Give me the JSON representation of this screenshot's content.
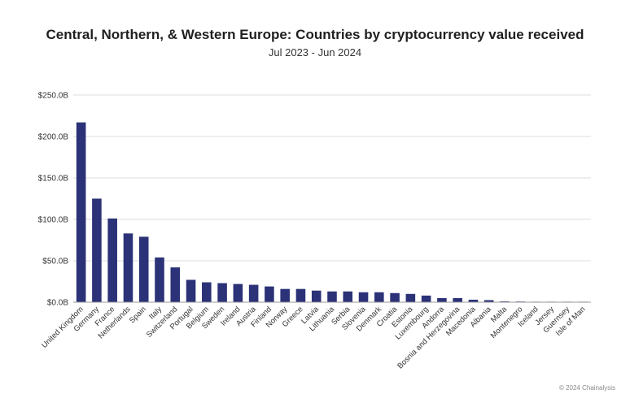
{
  "header": {
    "title": "Central, Northern, & Western Europe: Countries by cryptocurrency value received",
    "subtitle": "Jul 2023 - Jun 2024"
  },
  "footer": {
    "credit": "© 2024 Chainalysis"
  },
  "colors": {
    "bar": "#2b3277",
    "grid": "#dcdcdc",
    "axis": "#999999",
    "text": "#333333"
  },
  "chart_data": {
    "type": "bar",
    "title": "Central, Northern, & Western Europe: Countries by cryptocurrency value received",
    "subtitle": "Jul 2023 - Jun 2024",
    "xlabel": "",
    "ylabel": "",
    "ylim": [
      0,
      250
    ],
    "yticks": [
      0,
      50,
      100,
      150,
      200,
      250
    ],
    "ytick_labels": [
      "$0.0B",
      "$50.0B",
      "$100.0B",
      "$150.0B",
      "$200.0B",
      "$250.0B"
    ],
    "value_unit": "billion USD",
    "grid": true,
    "legend": "none",
    "categories": [
      "United Kingdom",
      "Germany",
      "France",
      "Netherlands",
      "Spain",
      "Italy",
      "Switzerland",
      "Portugal",
      "Belgium",
      "Sweden",
      "Ireland",
      "Austria",
      "Finland",
      "Norway",
      "Greece",
      "Latvia",
      "Lithuania",
      "Serbia",
      "Slovenia",
      "Denmark",
      "Croatia",
      "Estonia",
      "Luxembourg",
      "Andorra",
      "Bosnia and Herzegovina",
      "Macedonia",
      "Albania",
      "Malta",
      "Montenegro",
      "Iceland",
      "Jersey",
      "Guernsey",
      "Isle of Man"
    ],
    "values": [
      217,
      125,
      101,
      83,
      79,
      54,
      42,
      27,
      24,
      23,
      22,
      21,
      19,
      16,
      16,
      14,
      13,
      13,
      12,
      12,
      11,
      10,
      8,
      5,
      5,
      3,
      2.5,
      1,
      0.8,
      0.5,
      0.2,
      0.1,
      0.1
    ]
  }
}
